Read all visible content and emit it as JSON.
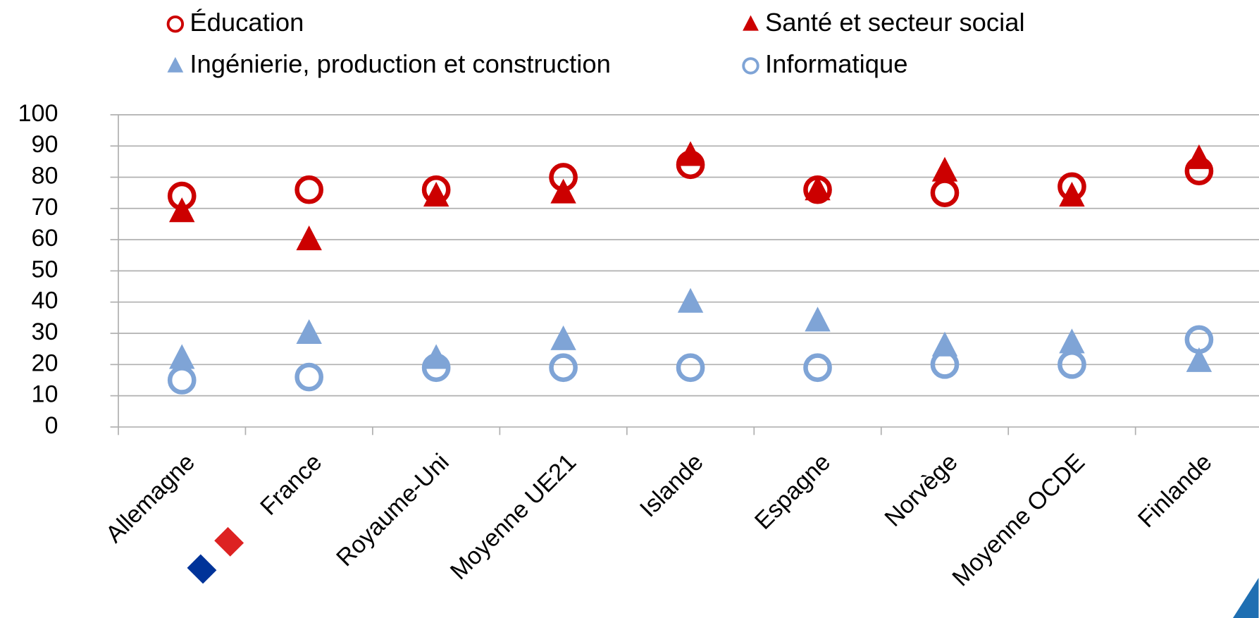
{
  "chart_data": {
    "type": "scatter",
    "categories": [
      "Allemagne",
      "France",
      "Royaume-Uni",
      "Moyenne UE21",
      "Islande",
      "Espagne",
      "Norvège",
      "Moyenne OCDE",
      "Finlande"
    ],
    "series": [
      {
        "name": "Éducation",
        "color": "#cc0000",
        "marker": "circle-open",
        "values": [
          74,
          76,
          76,
          80,
          84,
          76,
          75,
          77,
          82
        ]
      },
      {
        "name": "Santé et secteur social",
        "color": "#cc0000",
        "marker": "triangle",
        "values": [
          69,
          60,
          74,
          75,
          87,
          76,
          82,
          74,
          86
        ]
      },
      {
        "name": "Ingénierie, production et construction",
        "color": "#7fa4d6",
        "marker": "triangle",
        "values": [
          22,
          30,
          22,
          28,
          40,
          34,
          26,
          27,
          21
        ]
      },
      {
        "name": "Informatique",
        "color": "#7fa4d6",
        "marker": "circle-open",
        "values": [
          15,
          16,
          19,
          19,
          19,
          19,
          20,
          20,
          28
        ]
      }
    ],
    "ylim": [
      0,
      100
    ],
    "yticks": [
      0,
      10,
      20,
      30,
      40,
      50,
      60,
      70,
      80,
      90,
      100
    ],
    "grid": true
  }
}
